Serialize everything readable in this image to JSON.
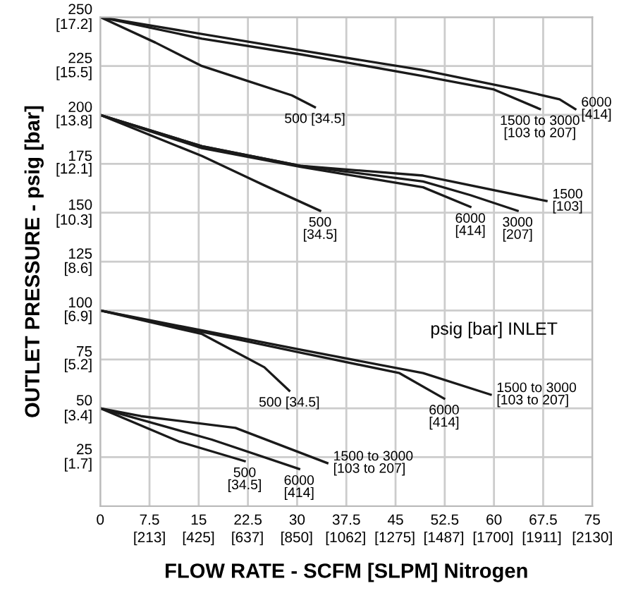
{
  "chart_data": {
    "type": "line",
    "xlabel": "FLOW RATE - SCFM [SLPM] Nitrogen",
    "y2label": "OUTLET PRESSURE - psig [bar]",
    "xlim": [
      0,
      75
    ],
    "ylim": [
      0,
      250
    ],
    "xticks": [
      0,
      7.5,
      15,
      22.5,
      30,
      37.5,
      45,
      52.5,
      60,
      67.5,
      75
    ],
    "yticks": [
      25,
      50,
      75,
      100,
      125,
      150,
      175,
      200,
      225,
      250
    ],
    "x2lim": [
      0,
      2130
    ],
    "x2ticks": [
      {
        "value": 213,
        "label": "[213]"
      },
      {
        "value": 425,
        "label": "[425]"
      },
      {
        "value": 637,
        "label": "[637]"
      },
      {
        "value": 850,
        "label": "[850]"
      },
      {
        "value": 1062,
        "label": "[1062]"
      },
      {
        "value": 1275,
        "label": "[1275]"
      },
      {
        "value": 1487,
        "label": "[1487]"
      },
      {
        "value": 1700,
        "label": "[1700]"
      },
      {
        "value": 1911,
        "label": "[1911]"
      },
      {
        "value": 2130,
        "label": "[2130]"
      }
    ],
    "y2lim": [
      0,
      17.24
    ],
    "y2ticks": [
      {
        "value": 1.7,
        "label": "[1.7]"
      },
      {
        "value": 3.4,
        "label": "[3.4]"
      },
      {
        "value": 5.2,
        "label": "[5.2]"
      },
      {
        "value": 6.9,
        "label": "[6.9]"
      },
      {
        "value": 8.6,
        "label": "[8.6]"
      },
      {
        "value": 10.3,
        "label": "[10.3]"
      },
      {
        "value": 12.1,
        "label": "[12.1]"
      },
      {
        "value": 13.8,
        "label": "[13.8]"
      },
      {
        "value": 15.5,
        "label": "[15.5]"
      },
      {
        "value": 17.2,
        "label": "[17.2]"
      }
    ],
    "grid": true,
    "marker": "none",
    "line_style": "solid",
    "series": [
      {
        "color": "#1a1a1a",
        "x": [
          0,
          8.4,
          15.5,
          22.8,
          29.2,
          32.7
        ],
        "values": [
          250,
          237,
          225,
          217,
          210,
          204
        ]
      },
      {
        "color": "#1a1a1a",
        "x": [
          0,
          15.5,
          30.5,
          49,
          60,
          67
        ],
        "values": [
          250,
          239,
          231,
          220,
          213,
          203
        ]
      },
      {
        "color": "#1a1a1a",
        "x": [
          0,
          30.5,
          49,
          63.6,
          70,
          72.4
        ],
        "values": [
          250,
          233,
          223,
          213,
          208,
          203
        ]
      },
      {
        "color": "#1a1a1a",
        "x": [
          0,
          15.5,
          25,
          33.5
        ],
        "values": [
          200,
          179,
          164,
          151
        ]
      },
      {
        "color": "#1a1a1a",
        "x": [
          0,
          15.5,
          30.5,
          49.2,
          68
        ],
        "values": [
          200,
          184,
          174,
          169,
          156
        ]
      },
      {
        "color": "#1a1a1a",
        "x": [
          0,
          15.5,
          30.5,
          49.2,
          56.4,
          63.6
        ],
        "values": [
          200,
          184,
          174,
          166,
          159,
          151
        ]
      },
      {
        "color": "#1a1a1a",
        "x": [
          0,
          15.5,
          30.5,
          49.2,
          56.4
        ],
        "values": [
          200,
          183,
          173.5,
          163,
          153
        ]
      },
      {
        "color": "#1a1a1a",
        "x": [
          0,
          15.5,
          25,
          28.8
        ],
        "values": [
          100,
          88,
          71,
          59
        ]
      },
      {
        "color": "#1a1a1a",
        "x": [
          0,
          30.5,
          45.6,
          52.4
        ],
        "values": [
          100,
          78.5,
          68,
          55
        ]
      },
      {
        "color": "#1a1a1a",
        "x": [
          0,
          30.5,
          49.2,
          59.5
        ],
        "values": [
          100,
          80,
          68,
          57
        ]
      },
      {
        "color": "#1a1a1a",
        "x": [
          0,
          12,
          22
        ],
        "values": [
          50,
          33,
          23
        ]
      },
      {
        "color": "#1a1a1a",
        "x": [
          0,
          17,
          30.3
        ],
        "values": [
          50,
          34,
          19
        ]
      },
      {
        "color": "#1a1a1a",
        "x": [
          0,
          6.2,
          20.6,
          34.6
        ],
        "values": [
          50,
          46,
          40,
          22
        ]
      }
    ],
    "annotations": [
      {
        "text": "500 [34.5]",
        "x": 32.7,
        "y": 204
      },
      {
        "text": "1500 to 3000\n[103 to 207]",
        "x": 67,
        "y": 203
      },
      {
        "text": "6000\n[414]",
        "x": 72.4,
        "y": 203
      },
      {
        "text": "500\n[34.5]",
        "x": 33.5,
        "y": 151
      },
      {
        "text": "6000\n[414]",
        "x": 56.4,
        "y": 153
      },
      {
        "text": "3000\n[207]",
        "x": 63.6,
        "y": 151
      },
      {
        "text": "1500\n[103]",
        "x": 68,
        "y": 156
      },
      {
        "text": "500 [34.5]",
        "x": 28.8,
        "y": 59
      },
      {
        "text": "6000\n[414]",
        "x": 52.4,
        "y": 55
      },
      {
        "text": "1500 to 3000\n[103 to 207]",
        "x": 59.5,
        "y": 57
      },
      {
        "text": "500\n[34.5]",
        "x": 22,
        "y": 23
      },
      {
        "text": "6000\n[414]",
        "x": 30.3,
        "y": 19
      },
      {
        "text": "1500 to 3000\n[103 to 207]",
        "x": 34.6,
        "y": 22
      },
      "psig [bar] INLET"
    ]
  }
}
